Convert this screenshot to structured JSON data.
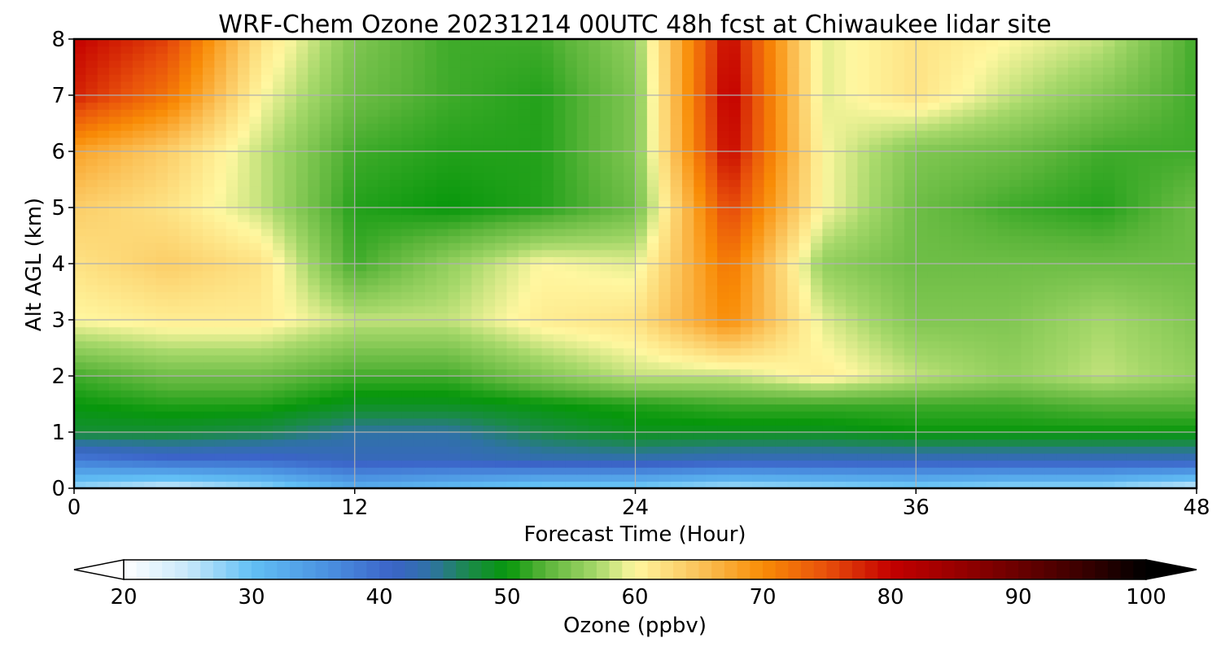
{
  "chart_data": {
    "type": "heatmap",
    "title": "WRF-Chem Ozone  20231214 00UTC 48h fcst at Chiwaukee lidar site",
    "xlabel": "Forecast Time (Hour)",
    "ylabel": "Alt AGL (km)",
    "xlim": [
      0,
      48
    ],
    "ylim": [
      0,
      8
    ],
    "x_ticks": [
      0,
      12,
      24,
      36,
      48
    ],
    "y_ticks": [
      0,
      1,
      2,
      3,
      4,
      5,
      6,
      7,
      8
    ],
    "grid": true,
    "x": [
      0,
      4,
      8,
      12,
      16,
      20,
      24,
      28,
      32,
      36,
      40,
      44,
      48
    ],
    "y": [
      0,
      0.5,
      1,
      1.5,
      2,
      3,
      4,
      5,
      6,
      7,
      8
    ],
    "z": [
      [
        27,
        24,
        27,
        32,
        30,
        28,
        28,
        26,
        27,
        28,
        27,
        27,
        24
      ],
      [
        38,
        40,
        40,
        42,
        42,
        43,
        43,
        42,
        42,
        42,
        42,
        42,
        42
      ],
      [
        48,
        48,
        47,
        44,
        44,
        47,
        49,
        49,
        49,
        50,
        50,
        50,
        50
      ],
      [
        50,
        51,
        51,
        49,
        49,
        50,
        51,
        52,
        52,
        52,
        52,
        53,
        53
      ],
      [
        52,
        54,
        54,
        52,
        52,
        55,
        58,
        58,
        61,
        58,
        56,
        58,
        56
      ],
      [
        60,
        61,
        61,
        58,
        58,
        61,
        62,
        70,
        59,
        55,
        55,
        57,
        55
      ],
      [
        62,
        64,
        62,
        52,
        56,
        60,
        59,
        72,
        56,
        54,
        54,
        54,
        54
      ],
      [
        64,
        62,
        58,
        51,
        50,
        51,
        54,
        76,
        60,
        54,
        52,
        51,
        54
      ],
      [
        68,
        64,
        58,
        52,
        51,
        51,
        55,
        80,
        60,
        55,
        54,
        52,
        52
      ],
      [
        78,
        72,
        60,
        54,
        52,
        51,
        55,
        81,
        59,
        62,
        58,
        55,
        52
      ],
      [
        80,
        76,
        62,
        55,
        52,
        52,
        56,
        80,
        59,
        62,
        60,
        58,
        52
      ]
    ],
    "colorbar": {
      "label": "Ozone  (ppbv)",
      "min": 20,
      "max": 100,
      "ticks": [
        20,
        30,
        40,
        50,
        60,
        70,
        80,
        90,
        100
      ],
      "extend": "both",
      "stops": [
        {
          "v": 20,
          "c": "#ffffff"
        },
        {
          "v": 25,
          "c": "#c8e8fa"
        },
        {
          "v": 30,
          "c": "#62c0f5"
        },
        {
          "v": 36,
          "c": "#4a90e0"
        },
        {
          "v": 41,
          "c": "#3b64c8"
        },
        {
          "v": 44,
          "c": "#2f72a5"
        },
        {
          "v": 47,
          "c": "#1b8a4a"
        },
        {
          "v": 50,
          "c": "#07970b"
        },
        {
          "v": 53,
          "c": "#5bb53a"
        },
        {
          "v": 57,
          "c": "#a6d86a"
        },
        {
          "v": 60,
          "c": "#fff7a0"
        },
        {
          "v": 65,
          "c": "#fbc35a"
        },
        {
          "v": 70,
          "c": "#f98c06"
        },
        {
          "v": 75,
          "c": "#e8500b"
        },
        {
          "v": 80,
          "c": "#c40000"
        },
        {
          "v": 85,
          "c": "#9a0000"
        },
        {
          "v": 90,
          "c": "#6a0000"
        },
        {
          "v": 95,
          "c": "#3a0000"
        },
        {
          "v": 100,
          "c": "#000000"
        }
      ]
    }
  }
}
